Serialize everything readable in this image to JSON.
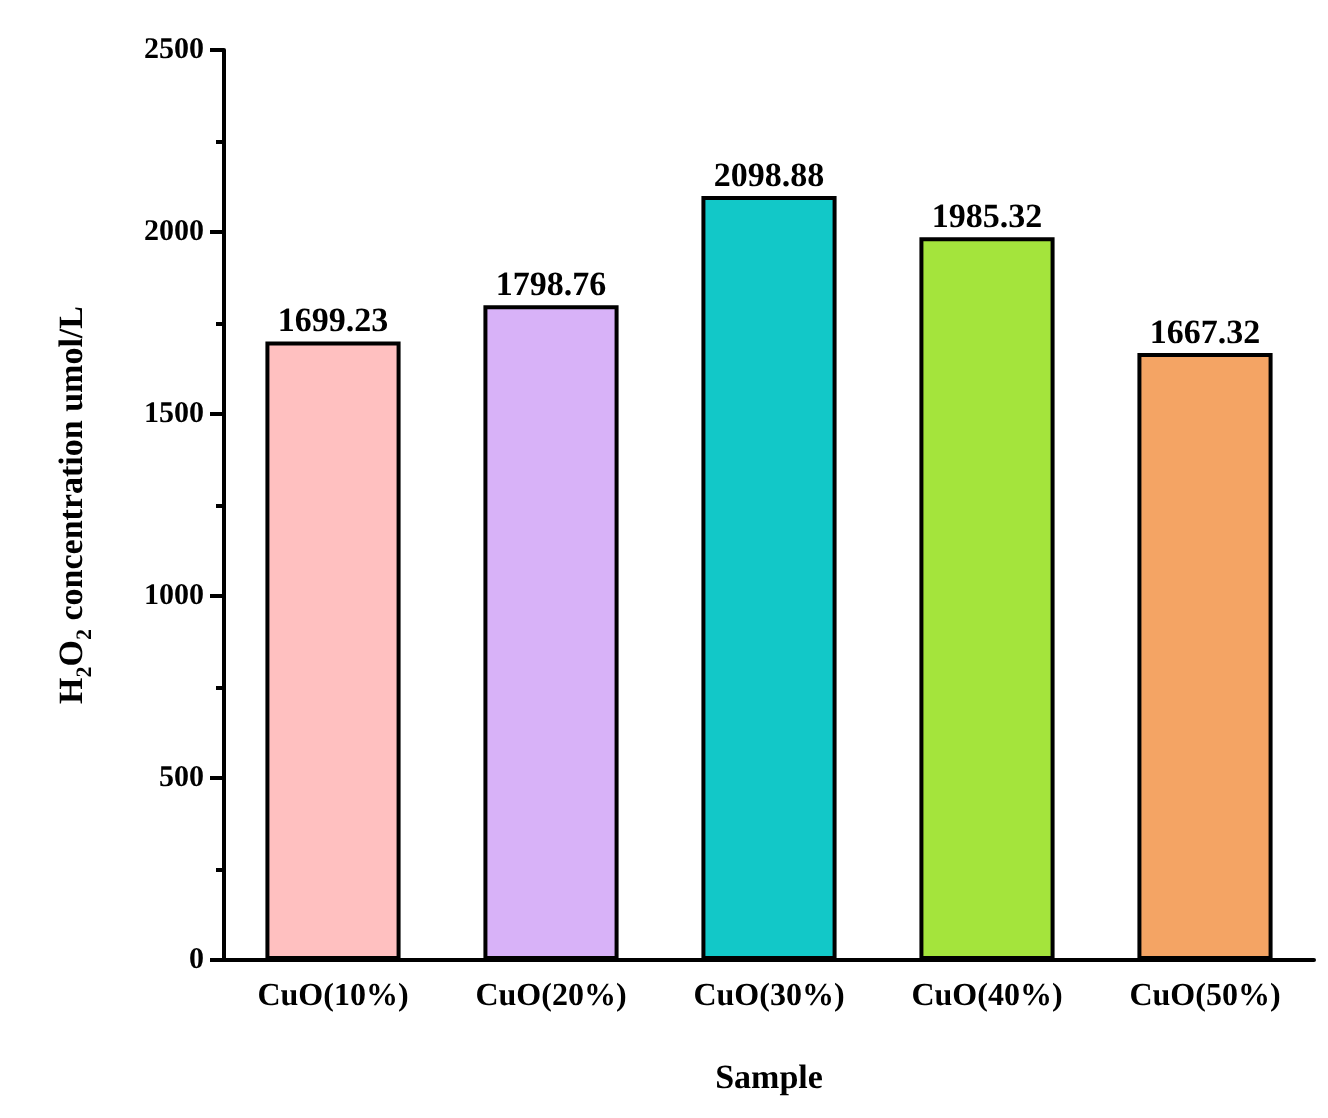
{
  "chart_data": {
    "type": "bar",
    "xlabel": "Sample",
    "ylabel": "H$_{2}$O$_{2}$ concentration umol/L",
    "categories": [
      "CuO(10%)",
      "CuO(20%)",
      "CuO(30%)",
      "CuO(40%)",
      "CuO(50%)"
    ],
    "values": [
      1699.23,
      1798.76,
      2098.88,
      1985.32,
      1667.32
    ],
    "colors": [
      "#ffc0c0",
      "#d8b2f8",
      "#12c8c8",
      "#a4e43c",
      "#f4a464"
    ],
    "ylim": [
      0,
      2500
    ],
    "yticks": [
      0,
      500,
      1000,
      1500,
      2000,
      2500
    ],
    "data_labels": true,
    "grid": false
  }
}
